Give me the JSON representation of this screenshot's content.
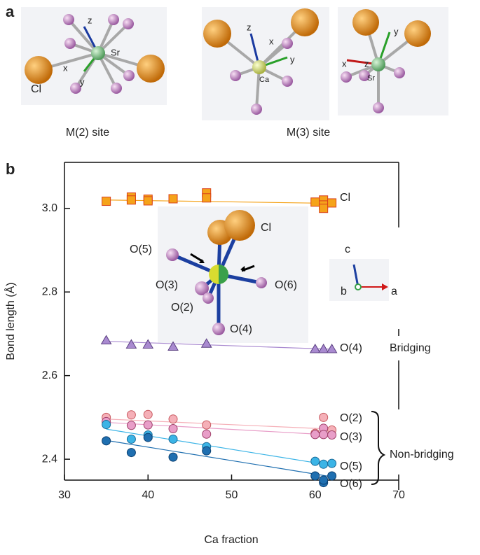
{
  "panel_labels": [
    "a",
    "b"
  ],
  "panel_a": {
    "m2": {
      "caption": "M(2) site",
      "labels": [
        "z",
        "Sr",
        "Cl",
        "x",
        "y"
      ]
    },
    "m3": {
      "caption": "M(3) site",
      "left_labels": [
        "z",
        "x",
        "y",
        "Ca"
      ],
      "right_labels": [
        "z",
        "y",
        "x",
        "Sr"
      ]
    }
  },
  "inset": {
    "atoms": [
      "O(5)",
      "O(3)",
      "O(2)",
      "O(4)",
      "O(6)",
      "Cl"
    ],
    "axes": [
      "c",
      "b",
      "a"
    ]
  },
  "chart_data": {
    "type": "scatter",
    "xlabel": "Ca fraction",
    "ylabel": "Bond length (Å)",
    "xlim": [
      30,
      70
    ],
    "xticks": [
      30,
      40,
      50,
      60,
      70
    ],
    "ylim": [
      2.35,
      3.11
    ],
    "yticks": [
      2.4,
      2.6,
      2.8,
      {
        "value": 3,
        "label": "3.0"
      }
    ],
    "fit_x": [
      35,
      62
    ],
    "annotations": [
      "Bridging",
      "Non-bridging"
    ],
    "series": [
      {
        "name": "Cl",
        "marker": "square",
        "color": "#f5a31a",
        "edge": "#d9401a",
        "x": [
          35,
          38,
          38,
          40,
          40,
          43,
          47,
          47,
          60,
          61,
          61,
          61,
          62
        ],
        "values": [
          3.017,
          3.027,
          3.02,
          3.022,
          3.018,
          3.023,
          3.037,
          3.025,
          3.015,
          3.02,
          3.008,
          3.0,
          3.013
        ],
        "fit": [
          3.02,
          3.012
        ]
      },
      {
        "name": "O(4)",
        "marker": "triangle",
        "color": "#a98ad0",
        "edge": "#5a3f80",
        "x": [
          35,
          38,
          40,
          43,
          47,
          60,
          61,
          62
        ],
        "values": [
          2.684,
          2.674,
          2.674,
          2.669,
          2.676,
          2.663,
          2.663,
          2.663
        ],
        "fit": [
          2.682,
          2.663
        ]
      },
      {
        "name": "O(2)",
        "marker": "circle",
        "color": "#f5b0b8",
        "edge": "#c85a60",
        "x": [
          35,
          38,
          40,
          43,
          47,
          60,
          61,
          62
        ],
        "values": [
          2.5,
          2.506,
          2.507,
          2.496,
          2.482,
          2.462,
          2.5,
          2.47
        ],
        "fit": [
          2.496,
          2.472
        ]
      },
      {
        "name": "O(3)",
        "marker": "circle",
        "color": "#e89ec8",
        "edge": "#a0406a",
        "x": [
          35,
          38,
          40,
          43,
          47,
          60,
          61,
          61,
          62
        ],
        "values": [
          2.49,
          2.481,
          2.482,
          2.473,
          2.46,
          2.459,
          2.474,
          2.459,
          2.458
        ],
        "fit": [
          2.488,
          2.458
        ]
      },
      {
        "name": "O(5)",
        "marker": "circle",
        "color": "#3bb4e6",
        "edge": "#1a6b99",
        "x": [
          35,
          38,
          40,
          43,
          47,
          60,
          61,
          62
        ],
        "values": [
          2.483,
          2.448,
          2.458,
          2.448,
          2.43,
          2.395,
          2.388,
          2.39
        ],
        "fit": [
          2.472,
          2.385
        ]
      },
      {
        "name": "O(6)",
        "marker": "circle",
        "color": "#1f6fb0",
        "edge": "#0b3f70",
        "x": [
          35,
          38,
          40,
          43,
          47,
          60,
          61,
          61,
          62
        ],
        "values": [
          2.444,
          2.416,
          2.452,
          2.405,
          2.42,
          2.36,
          2.344,
          2.35,
          2.36
        ],
        "fit": [
          2.445,
          2.358
        ]
      }
    ]
  }
}
